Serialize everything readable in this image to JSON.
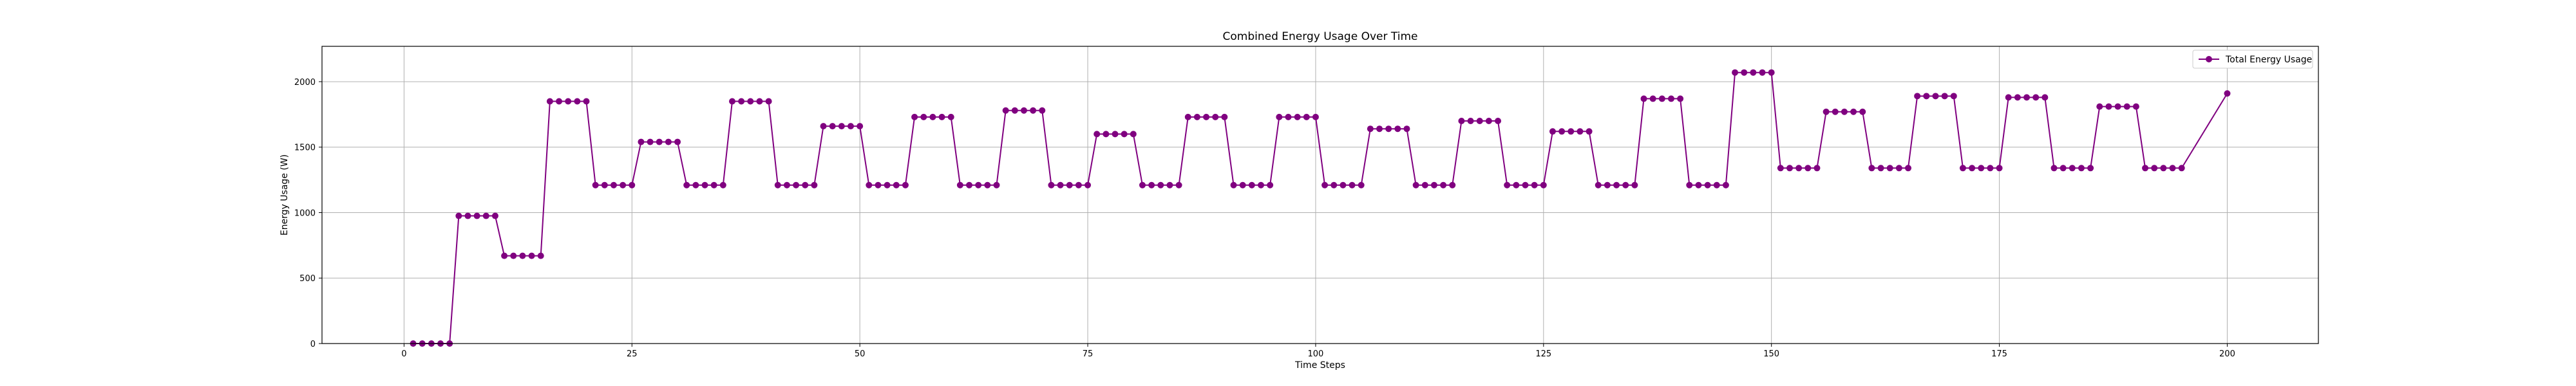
{
  "chart_data": {
    "type": "line",
    "title": "Combined Energy Usage Over Time",
    "xlabel": "Time Steps",
    "ylabel": "Energy Usage (W)",
    "xlim": [
      -9,
      210
    ],
    "ylim": [
      0,
      2270
    ],
    "xticks": [
      0,
      25,
      50,
      75,
      100,
      125,
      150,
      175,
      200
    ],
    "yticks": [
      0,
      500,
      1000,
      1500,
      2000
    ],
    "grid": true,
    "legend_position": "top-right",
    "colors": {
      "line": "#800080",
      "grid": "#b0b0b0",
      "axis": "#000000"
    },
    "series": [
      {
        "name": "Total Energy Usage",
        "marker": "circle",
        "levels": [
          0,
          975,
          670,
          1850,
          1210,
          1540,
          1210,
          1850,
          1210,
          1660,
          1210,
          1730,
          1210,
          1780,
          1210,
          1600,
          1210,
          1730,
          1210,
          1730,
          1210,
          1640,
          1210,
          1700,
          1210,
          1620,
          1210,
          1870,
          1210,
          2070,
          1340,
          1770,
          1340,
          1890,
          1340,
          1880,
          1340,
          1810,
          1340
        ],
        "points_per_level": 5,
        "x_start": 1,
        "final_point": [
          200,
          1910
        ]
      }
    ]
  }
}
